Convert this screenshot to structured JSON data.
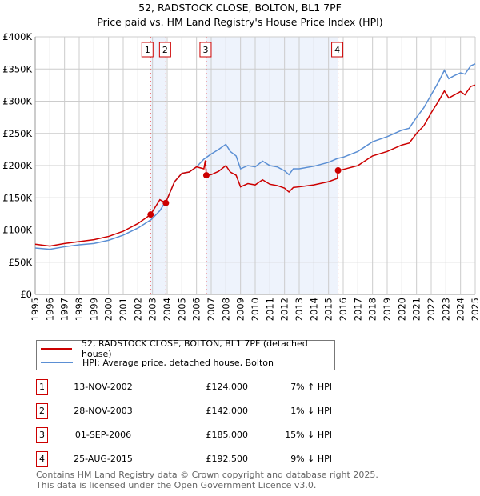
{
  "chart_data": {
    "type": "line",
    "title": "52, RADSTOCK CLOSE, BOLTON, BL1 7PF",
    "subtitle": "Price paid vs. HM Land Registry's House Price Index (HPI)",
    "xlim": [
      1995,
      2025
    ],
    "ylim": [
      0,
      400000
    ],
    "y_ticks": [
      {
        "v": 0,
        "label": "£0"
      },
      {
        "v": 50000,
        "label": "£50K"
      },
      {
        "v": 100000,
        "label": "£100K"
      },
      {
        "v": 150000,
        "label": "£150K"
      },
      {
        "v": 200000,
        "label": "£200K"
      },
      {
        "v": 250000,
        "label": "£250K"
      },
      {
        "v": 300000,
        "label": "£300K"
      },
      {
        "v": 350000,
        "label": "£350K"
      },
      {
        "v": 400000,
        "label": "£400K"
      }
    ],
    "x_ticks": [
      "1995",
      "1996",
      "1997",
      "1998",
      "1999",
      "2000",
      "2001",
      "2002",
      "2003",
      "2004",
      "2005",
      "2006",
      "2007",
      "2008",
      "2009",
      "2010",
      "2011",
      "2012",
      "2013",
      "2014",
      "2015",
      "2016",
      "2017",
      "2018",
      "2019",
      "2020",
      "2021",
      "2022",
      "2023",
      "2024",
      "2025"
    ],
    "grid": true,
    "series": [
      {
        "name": "52, RADSTOCK CLOSE, BOLTON, BL1 7PF (detached house)",
        "color": "#cc0000",
        "x": [
          1995,
          1996,
          1997,
          1998,
          1999,
          2000,
          2001,
          2002,
          2002.87,
          2003.5,
          2003.9,
          2004,
          2004.5,
          2005,
          2005.5,
          2006,
          2006.5,
          2006.6,
          2006.67,
          2007,
          2007.5,
          2008,
          2008.3,
          2008.7,
          2009,
          2009.5,
          2010,
          2010.5,
          2011,
          2011.5,
          2012,
          2012.3,
          2012.6,
          2013,
          2014,
          2015,
          2015.6,
          2015.65,
          2016,
          2017,
          2018,
          2019,
          2020,
          2020.5,
          2021,
          2021.5,
          2022,
          2022.5,
          2022.9,
          2023.2,
          2023.6,
          2024,
          2024.3,
          2024.7,
          2025
        ],
        "y": [
          78000,
          75000,
          79000,
          82000,
          85000,
          90000,
          98000,
          110000,
          124000,
          147000,
          142000,
          148000,
          175000,
          188000,
          190000,
          198000,
          195000,
          208000,
          185000,
          186000,
          191000,
          200000,
          190000,
          185000,
          167000,
          172000,
          170000,
          178000,
          171000,
          169000,
          165000,
          159000,
          166000,
          167000,
          170000,
          175000,
          180000,
          192500,
          194000,
          200000,
          215000,
          222000,
          232000,
          235000,
          250000,
          262000,
          282000,
          300000,
          316000,
          305000,
          310000,
          315000,
          310000,
          323000,
          325000
        ]
      },
      {
        "name": "HPI: Average price, detached house, Bolton",
        "color": "#5b8fd4",
        "x": [
          1995,
          1996,
          1997,
          1998,
          1999,
          2000,
          2001,
          2002,
          2002.9,
          2003.5,
          2004,
          2004.5,
          2005,
          2005.5,
          2006,
          2006.5,
          2007,
          2007.5,
          2008,
          2008.3,
          2008.7,
          2009,
          2009.5,
          2010,
          2010.5,
          2011,
          2011.5,
          2012,
          2012.3,
          2012.6,
          2013,
          2014,
          2015,
          2015.6,
          2016,
          2017,
          2018,
          2019,
          2020,
          2020.5,
          2021,
          2021.5,
          2022,
          2022.5,
          2022.9,
          2023.2,
          2023.6,
          2024,
          2024.3,
          2024.7,
          2025
        ],
        "y": [
          72000,
          70000,
          74000,
          77000,
          79000,
          84000,
          92000,
          103000,
          116000,
          130000,
          148000,
          175000,
          188000,
          190000,
          198000,
          210000,
          218000,
          225000,
          233000,
          222000,
          215000,
          195000,
          200000,
          198000,
          207000,
          200000,
          198000,
          192000,
          186000,
          195000,
          195000,
          199000,
          205000,
          211000,
          213000,
          222000,
          237000,
          245000,
          255000,
          258000,
          275000,
          290000,
          310000,
          330000,
          348000,
          335000,
          340000,
          344000,
          342000,
          355000,
          358000
        ]
      }
    ],
    "shaded_ranges": [
      [
        2002.87,
        2003.91
      ],
      [
        2006.67,
        2015.65
      ]
    ],
    "sales": [
      {
        "n": "1",
        "x": 2002.87,
        "date": "13-NOV-2002",
        "price": "£124,000",
        "value": 124000,
        "hpi": "7% ↑ HPI"
      },
      {
        "n": "2",
        "x": 2003.91,
        "date": "28-NOV-2003",
        "price": "£142,000",
        "value": 142000,
        "hpi": "1% ↓ HPI"
      },
      {
        "n": "3",
        "x": 2006.67,
        "date": "01-SEP-2006",
        "price": "£185,000",
        "value": 185000,
        "hpi": "15% ↓ HPI"
      },
      {
        "n": "4",
        "x": 2015.65,
        "date": "25-AUG-2015",
        "price": "£192,500",
        "value": 192500,
        "hpi": "9% ↓ HPI"
      }
    ],
    "legend_placement": "below"
  },
  "footer": {
    "line1": "Contains HM Land Registry data © Crown copyright and database right 2025.",
    "line2": "This data is licensed under the Open Government Licence v3.0."
  }
}
